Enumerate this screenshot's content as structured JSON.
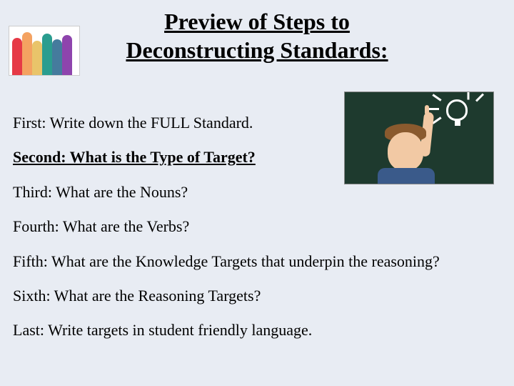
{
  "title_line1": "Preview of Steps to",
  "title_line2": "Deconstructing Standards:",
  "steps": {
    "s1": "First: Write down the FULL Standard.",
    "s2": "Second: What is the Type of Target?",
    "s3": "Third: What are the Nouns?",
    "s4": "Fourth: What are the Verbs?",
    "s5": "Fifth: What are the Knowledge Targets that underpin the reasoning?",
    "s6": "Sixth:  What are the Reasoning Targets?",
    "s7": "Last: Write targets in student friendly language."
  },
  "colors": {
    "background": "#e8ecf3",
    "text": "#000000"
  },
  "typography": {
    "title_fontsize": 32,
    "body_fontsize": 22,
    "font_family": "Times New Roman"
  },
  "highlight_step_index": 1,
  "images": {
    "left_icon": "raised-hands-multicolor",
    "right_icon": "child-pointing-lightbulb-chalkboard"
  }
}
